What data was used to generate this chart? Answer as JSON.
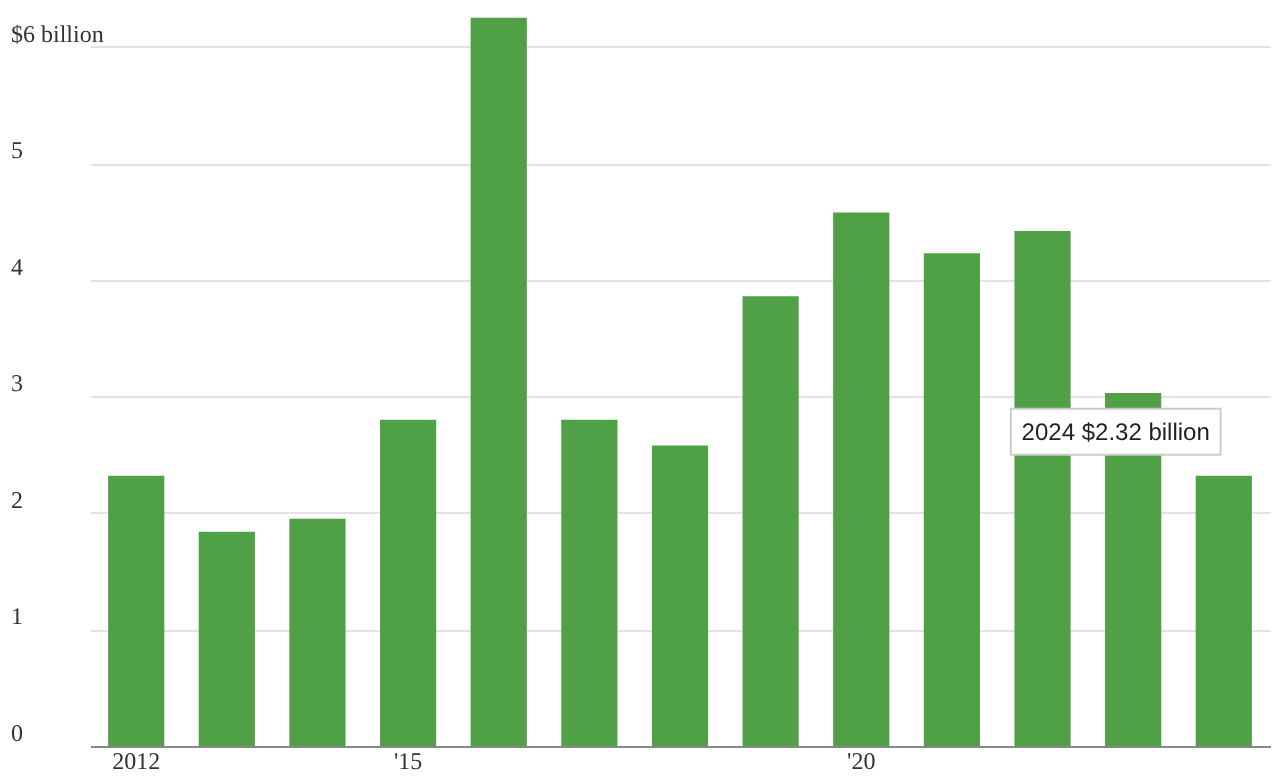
{
  "chart_data": {
    "type": "bar",
    "categories": [
      "2012",
      null,
      null,
      "'15",
      null,
      null,
      null,
      null,
      "'20",
      null,
      null,
      null,
      null
    ],
    "values": [
      2.32,
      1.84,
      1.95,
      2.8,
      6.25,
      2.8,
      2.58,
      3.86,
      4.58,
      4.23,
      4.42,
      3.03,
      2.32
    ],
    "color": "#50a046",
    "ylim": [
      0,
      6.3
    ],
    "yticks": [
      0,
      1,
      2,
      3,
      4,
      5,
      {
        "value": 6,
        "label": "$6 billion"
      }
    ],
    "grid": "y",
    "annotations": [
      "2024 $2.32 billion"
    ]
  }
}
